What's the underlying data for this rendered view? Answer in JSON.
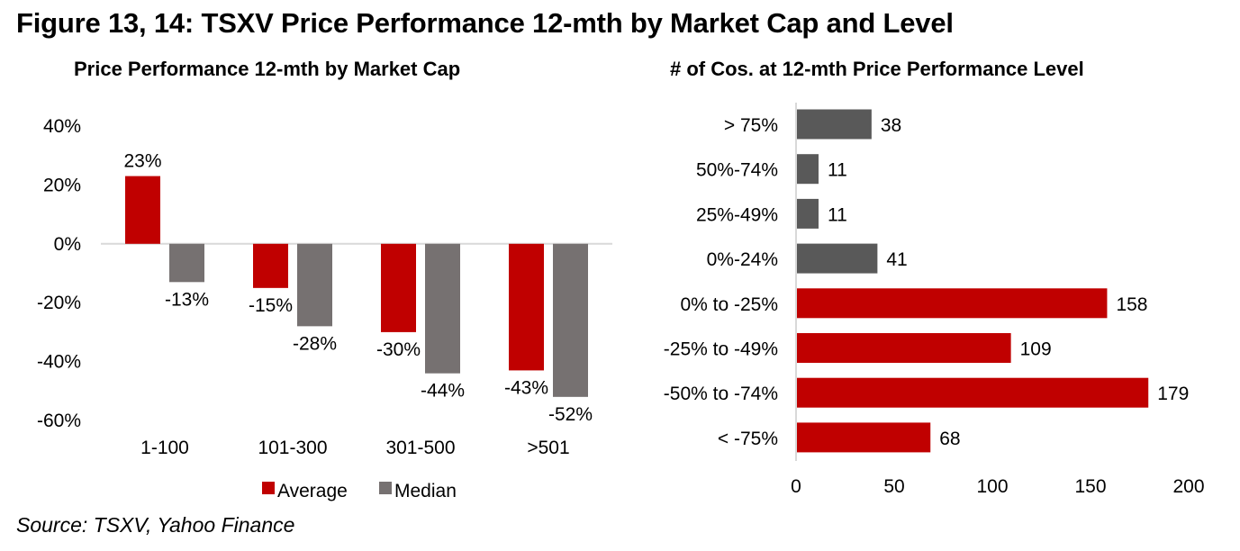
{
  "figure_title": "Figure 13, 14: TSXV Price Performance 12-mth by Market Cap and Level",
  "source": "Source: TSXV, Yahoo Finance",
  "colors": {
    "average": "#c00000",
    "median": "#767171",
    "positive_level": "#595959",
    "negative_level": "#c00000",
    "axis": "#d9d9d9"
  },
  "chart_data": [
    {
      "type": "bar",
      "title": "Price Performance 12-mth by Market Cap",
      "xlabel": "",
      "ylabel": "",
      "categories": [
        "1-100",
        "101-300",
        "301-500",
        ">501"
      ],
      "series": [
        {
          "name": "Average",
          "values": [
            23,
            -15,
            -30,
            -43
          ],
          "labels": [
            "23%",
            "-15%",
            "-30%",
            "-43%"
          ]
        },
        {
          "name": "Median",
          "values": [
            -13,
            -28,
            -44,
            -52
          ],
          "labels": [
            "-13%",
            "-28%",
            "-44%",
            "-52%"
          ]
        }
      ],
      "ylim": [
        -60,
        40
      ],
      "yticks": [
        40,
        20,
        0,
        -20,
        -40,
        -60
      ],
      "ytick_labels": [
        "40%",
        "20%",
        "0%",
        "-20%",
        "-40%",
        "-60%"
      ],
      "grid": false,
      "legend": {
        "position": "bottom",
        "entries": [
          "Average",
          "Median"
        ]
      }
    },
    {
      "type": "bar",
      "orientation": "horizontal",
      "title": "# of Cos. at 12-mth Price Performance Level",
      "xlabel": "",
      "ylabel": "",
      "categories": [
        "> 75%",
        "50%-74%",
        "25%-49%",
        "0%-24%",
        "0% to -25%",
        "-25% to -49%",
        "-50% to -74%",
        "< -75%"
      ],
      "values": [
        38,
        11,
        11,
        41,
        158,
        109,
        179,
        68
      ],
      "xlim": [
        0,
        200
      ],
      "xticks": [
        0,
        50,
        100,
        150,
        200
      ],
      "xtick_labels": [
        "0",
        "50",
        "100",
        "150",
        "200"
      ],
      "grid": false
    }
  ]
}
